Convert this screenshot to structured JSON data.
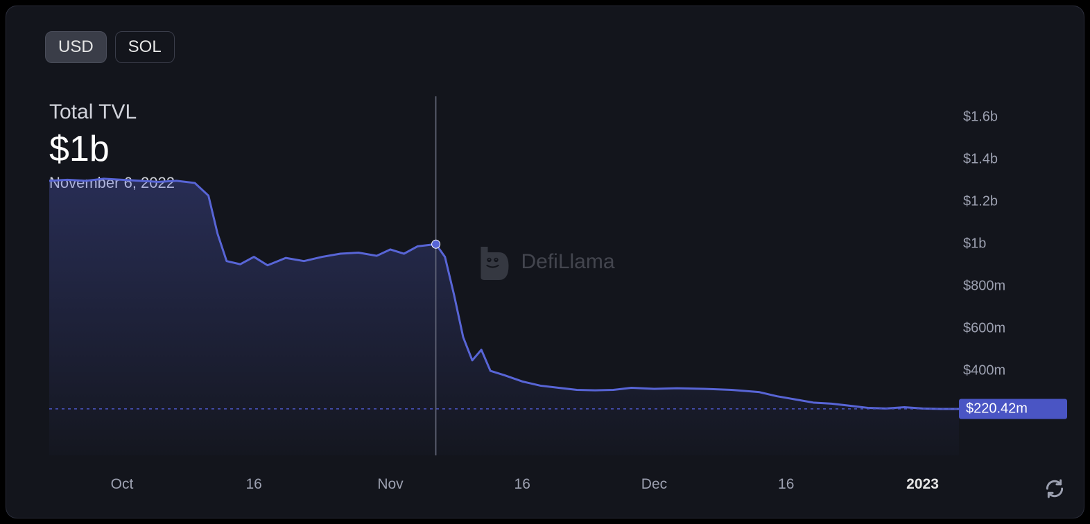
{
  "toggles": {
    "usd": "USD",
    "sol": "SOL",
    "active": "usd"
  },
  "header": {
    "label": "Total TVL",
    "value": "$1b",
    "date": "November 6, 2022"
  },
  "watermark": "DefiLlama",
  "chart": {
    "type": "area",
    "line_color": "#5865d6",
    "line_width": 3,
    "fill_top_color": "rgba(88,101,214,0.30)",
    "fill_bottom_color": "rgba(88,101,214,0.02)",
    "background_color": "#13151c",
    "crosshair_color": "#6a6e80",
    "marker_color": "#5865d6",
    "marker_radius": 6,
    "reference_line_color": "#4a55c4",
    "grid_color": "#2a2d3a",
    "ylim": [
      0,
      1700
    ],
    "y_ticks": [
      {
        "v": 1600,
        "label": "$1.6b"
      },
      {
        "v": 1400,
        "label": "$1.4b"
      },
      {
        "v": 1200,
        "label": "$1.2b"
      },
      {
        "v": 1000,
        "label": "$1b"
      },
      {
        "v": 800,
        "label": "$800m"
      },
      {
        "v": 600,
        "label": "$600m"
      },
      {
        "v": 400,
        "label": "$400m"
      }
    ],
    "y_current": {
      "v": 220.42,
      "label": "$220.42m"
    },
    "x_range": [
      0,
      100
    ],
    "x_ticks": [
      {
        "x": 8.0,
        "label": "Oct",
        "bold": false
      },
      {
        "x": 22.5,
        "label": "16",
        "bold": false
      },
      {
        "x": 37.5,
        "label": "Nov",
        "bold": false
      },
      {
        "x": 52.0,
        "label": "16",
        "bold": false
      },
      {
        "x": 66.5,
        "label": "Dec",
        "bold": false
      },
      {
        "x": 81.0,
        "label": "16",
        "bold": false
      },
      {
        "x": 96.0,
        "label": "2023",
        "bold": true
      }
    ],
    "crosshair_x": 42.5,
    "series": [
      {
        "x": 0.0,
        "y": 1300
      },
      {
        "x": 2.0,
        "y": 1305
      },
      {
        "x": 4.0,
        "y": 1300
      },
      {
        "x": 6.0,
        "y": 1310
      },
      {
        "x": 8.0,
        "y": 1305
      },
      {
        "x": 10.0,
        "y": 1300
      },
      {
        "x": 12.0,
        "y": 1295
      },
      {
        "x": 14.0,
        "y": 1300
      },
      {
        "x": 16.0,
        "y": 1290
      },
      {
        "x": 17.5,
        "y": 1230
      },
      {
        "x": 18.5,
        "y": 1050
      },
      {
        "x": 19.5,
        "y": 920
      },
      {
        "x": 21.0,
        "y": 905
      },
      {
        "x": 22.5,
        "y": 940
      },
      {
        "x": 24.0,
        "y": 900
      },
      {
        "x": 26.0,
        "y": 935
      },
      {
        "x": 28.0,
        "y": 920
      },
      {
        "x": 30.0,
        "y": 940
      },
      {
        "x": 32.0,
        "y": 955
      },
      {
        "x": 34.0,
        "y": 960
      },
      {
        "x": 36.0,
        "y": 945
      },
      {
        "x": 37.5,
        "y": 975
      },
      {
        "x": 39.0,
        "y": 955
      },
      {
        "x": 40.5,
        "y": 990
      },
      {
        "x": 42.5,
        "y": 1000
      },
      {
        "x": 43.5,
        "y": 940
      },
      {
        "x": 44.5,
        "y": 760
      },
      {
        "x": 45.5,
        "y": 560
      },
      {
        "x": 46.5,
        "y": 450
      },
      {
        "x": 47.5,
        "y": 500
      },
      {
        "x": 48.5,
        "y": 400
      },
      {
        "x": 50.0,
        "y": 380
      },
      {
        "x": 52.0,
        "y": 350
      },
      {
        "x": 54.0,
        "y": 330
      },
      {
        "x": 56.0,
        "y": 320
      },
      {
        "x": 58.0,
        "y": 310
      },
      {
        "x": 60.0,
        "y": 308
      },
      {
        "x": 62.0,
        "y": 310
      },
      {
        "x": 64.0,
        "y": 320
      },
      {
        "x": 66.5,
        "y": 315
      },
      {
        "x": 69.0,
        "y": 318
      },
      {
        "x": 72.0,
        "y": 315
      },
      {
        "x": 75.0,
        "y": 310
      },
      {
        "x": 78.0,
        "y": 300
      },
      {
        "x": 80.0,
        "y": 280
      },
      {
        "x": 82.0,
        "y": 265
      },
      {
        "x": 84.0,
        "y": 250
      },
      {
        "x": 86.0,
        "y": 245
      },
      {
        "x": 88.0,
        "y": 235
      },
      {
        "x": 90.0,
        "y": 225
      },
      {
        "x": 92.0,
        "y": 222
      },
      {
        "x": 94.0,
        "y": 228
      },
      {
        "x": 96.0,
        "y": 222
      },
      {
        "x": 98.0,
        "y": 220
      },
      {
        "x": 100.0,
        "y": 220
      }
    ]
  },
  "icons": {
    "refresh_stroke": "#9ca0b0"
  }
}
